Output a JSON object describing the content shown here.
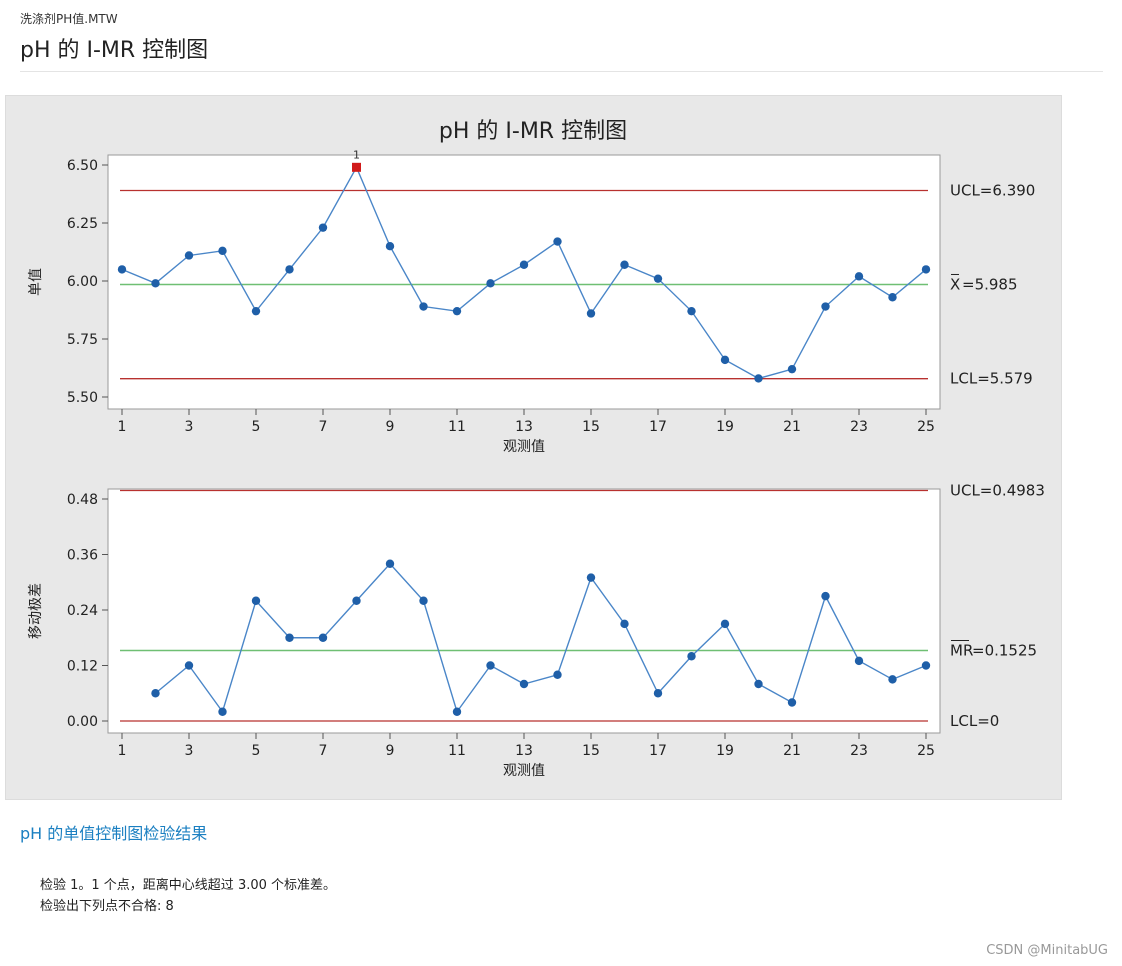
{
  "header": {
    "filename": "洗涤剂PH值.MTW",
    "title": "pH 的 I-MR 控制图"
  },
  "chart_data": [
    {
      "type": "line",
      "title": "pH 的 I-MR 控制图",
      "xlabel": "观测值",
      "ylabel": "单值",
      "x": [
        1,
        2,
        3,
        4,
        5,
        6,
        7,
        8,
        9,
        10,
        11,
        12,
        13,
        14,
        15,
        16,
        17,
        18,
        19,
        20,
        21,
        22,
        23,
        24,
        25
      ],
      "values": [
        6.05,
        5.99,
        6.11,
        6.13,
        5.87,
        6.05,
        6.23,
        6.49,
        6.15,
        5.89,
        5.87,
        5.99,
        6.07,
        6.17,
        5.86,
        6.07,
        6.01,
        5.87,
        5.66,
        5.58,
        5.62,
        5.89,
        6.02,
        5.93,
        6.05
      ],
      "xticks": [
        1,
        3,
        5,
        7,
        9,
        11,
        13,
        15,
        17,
        19,
        21,
        23,
        25
      ],
      "yticks": [
        "5.50",
        "5.75",
        "6.00",
        "6.25",
        "6.50"
      ],
      "ylim": [
        5.5,
        6.5
      ],
      "ucl": 6.39,
      "center": 5.985,
      "lcl": 5.579,
      "ucl_label": "UCL=6.390",
      "center_label_sym": "X",
      "center_label_val": "=5.985",
      "lcl_label": "LCL=5.579",
      "flagged": [
        8
      ],
      "flag_label": "1"
    },
    {
      "type": "line",
      "xlabel": "观测值",
      "ylabel": "移动极差",
      "x": [
        2,
        3,
        4,
        5,
        6,
        7,
        8,
        9,
        10,
        11,
        12,
        13,
        14,
        15,
        16,
        17,
        18,
        19,
        20,
        21,
        22,
        23,
        24,
        25
      ],
      "values": [
        0.06,
        0.12,
        0.02,
        0.26,
        0.18,
        0.18,
        0.26,
        0.34,
        0.26,
        0.02,
        0.12,
        0.08,
        0.1,
        0.31,
        0.21,
        0.06,
        0.14,
        0.21,
        0.08,
        0.04,
        0.27,
        0.13,
        0.09,
        0.12
      ],
      "xticks": [
        1,
        3,
        5,
        7,
        9,
        11,
        13,
        15,
        17,
        19,
        21,
        23,
        25
      ],
      "yticks": [
        "0.00",
        "0.12",
        "0.24",
        "0.36",
        "0.48"
      ],
      "ylim": [
        0,
        0.5
      ],
      "ucl": 0.4983,
      "center": 0.1525,
      "lcl": 0,
      "ucl_label": "UCL=0.4983",
      "center_label_sym": "MR",
      "center_label_val": "=0.1525",
      "lcl_label": "LCL=0"
    }
  ],
  "results": {
    "title": "pH 的单值控制图检验结果",
    "line1": "检验 1。1 个点，距离中心线超过 3.00 个标准差。",
    "line2": "检验出下列点不合格:  8"
  },
  "watermark": "CSDN @MinitabUG",
  "colors": {
    "series": "#4a86c8",
    "marker": "#1f5fa8",
    "limit": "#b8312f",
    "center": "#6fbf73",
    "flag": "#d11a1a",
    "section_title": "#1a7fc1"
  }
}
